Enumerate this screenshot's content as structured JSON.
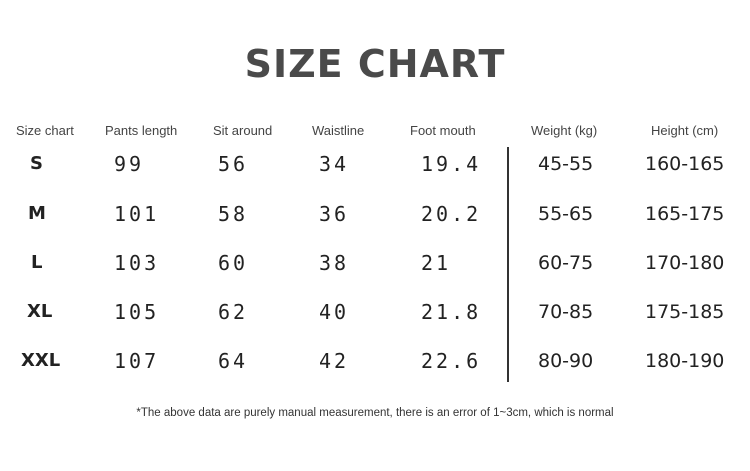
{
  "title": "SIZE CHART",
  "headers": [
    "Size chart",
    "Pants length",
    "Sit around",
    "Waistline",
    "Foot mouth",
    "Weight (kg)",
    "Height (cm)"
  ],
  "rows": [
    {
      "size": "S",
      "pants_length": "99",
      "sit_around": "56",
      "waistline": "34",
      "foot_mouth": "19.4",
      "weight": "45-55",
      "height": "160-165"
    },
    {
      "size": "M",
      "pants_length": "101",
      "sit_around": "58",
      "waistline": "36",
      "foot_mouth": "20.2",
      "weight": "55-65",
      "height": "165-175"
    },
    {
      "size": "L",
      "pants_length": "103",
      "sit_around": "60",
      "waistline": "38",
      "foot_mouth": "21",
      "weight": "60-75",
      "height": "170-180"
    },
    {
      "size": "XL",
      "pants_length": "105",
      "sit_around": "62",
      "waistline": "40",
      "foot_mouth": "21.8",
      "weight": "70-85",
      "height": "175-185"
    },
    {
      "size": "XXL",
      "pants_length": "107",
      "sit_around": "64",
      "waistline": "42",
      "foot_mouth": "22.6",
      "weight": "80-90",
      "height": "180-190"
    }
  ],
  "note": "*The above data are purely manual measurement, there is an error of 1~3cm, which is normal",
  "colors": {
    "title": "#4a4a4a",
    "text": "#222222",
    "divider": "#333333"
  }
}
